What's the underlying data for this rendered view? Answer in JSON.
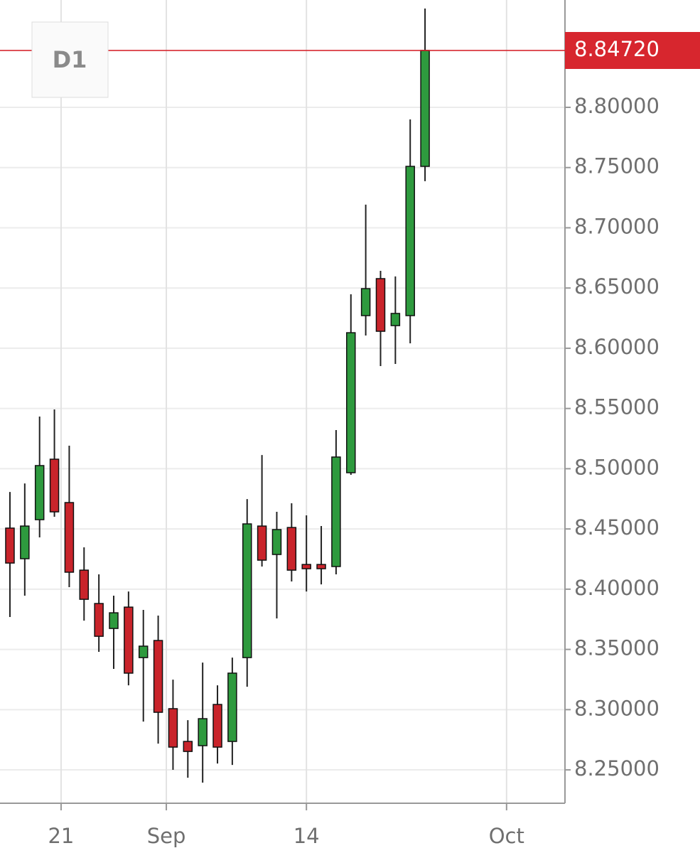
{
  "chart_data": {
    "type": "candlestick",
    "timeframe": "D1",
    "open": [
      8.4507,
      8.4253,
      8.4577,
      8.5079,
      8.4719,
      8.4158,
      8.3881,
      8.3674,
      8.3851,
      8.3432,
      8.3574,
      8.3008,
      8.2736,
      8.2701,
      8.3043,
      8.2736,
      8.3432,
      8.4524,
      8.4288,
      8.4512,
      8.4205,
      8.4205,
      8.4188,
      8.4967,
      8.6271,
      8.6578,
      8.6188,
      8.6271,
      8.751
    ],
    "high": [
      8.4807,
      8.4878,
      8.5433,
      8.5492,
      8.5191,
      8.4347,
      8.4123,
      8.3946,
      8.3981,
      8.3828,
      8.3781,
      8.3249,
      8.2913,
      8.3391,
      8.3202,
      8.3432,
      8.4748,
      8.5114,
      8.4642,
      8.4713,
      8.4613,
      8.4524,
      8.5321,
      8.6448,
      8.7192,
      8.6643,
      8.6596,
      8.79,
      8.882
    ],
    "low": [
      8.3769,
      8.3946,
      8.443,
      8.4601,
      8.4017,
      8.3739,
      8.348,
      8.3338,
      8.3202,
      8.2901,
      8.2718,
      8.25,
      8.2435,
      8.2394,
      8.2553,
      8.2541,
      8.319,
      8.4188,
      8.3757,
      8.4064,
      8.3981,
      8.404,
      8.4123,
      8.4949,
      8.6106,
      8.5852,
      8.587,
      8.6041,
      8.7387
    ],
    "close": [
      8.4217,
      8.4524,
      8.5026,
      8.4642,
      8.4141,
      8.3916,
      8.3609,
      8.3804,
      8.3303,
      8.3527,
      8.2978,
      8.2689,
      8.2653,
      8.2925,
      8.2689,
      8.3303,
      8.4542,
      8.4241,
      8.4495,
      8.4158,
      8.417,
      8.417,
      8.5097,
      8.6129,
      8.6495,
      8.6141,
      8.6289,
      8.751,
      8.8472
    ],
    "up_color": "#2e9a3e",
    "down_color": "#c9242b",
    "current_price": {
      "value": 8.8472,
      "label": "8.84720"
    },
    "current_price_color": "#d7262e",
    "xlim": [
      -0.67,
      37.44
    ],
    "xticks": [
      {
        "value": 3.45,
        "label": "21"
      },
      {
        "value": 10.55,
        "label": "Sep"
      },
      {
        "value": 20,
        "label": "14"
      },
      {
        "value": 33.5,
        "label": "Oct"
      }
    ],
    "ylim": [
      8.2223,
      8.8891
    ],
    "yticks": [
      {
        "value": 8.25,
        "label": "8.25000"
      },
      {
        "value": 8.3,
        "label": "8.30000"
      },
      {
        "value": 8.35,
        "label": "8.35000"
      },
      {
        "value": 8.4,
        "label": "8.40000"
      },
      {
        "value": 8.45,
        "label": "8.45000"
      },
      {
        "value": 8.5,
        "label": "8.50000"
      },
      {
        "value": 8.55,
        "label": "8.55000"
      },
      {
        "value": 8.6,
        "label": "8.60000"
      },
      {
        "value": 8.65,
        "label": "8.65000"
      },
      {
        "value": 8.7,
        "label": "8.70000"
      },
      {
        "value": 8.75,
        "label": "8.75000"
      },
      {
        "value": 8.8,
        "label": "8.80000"
      }
    ],
    "grid": true
  }
}
